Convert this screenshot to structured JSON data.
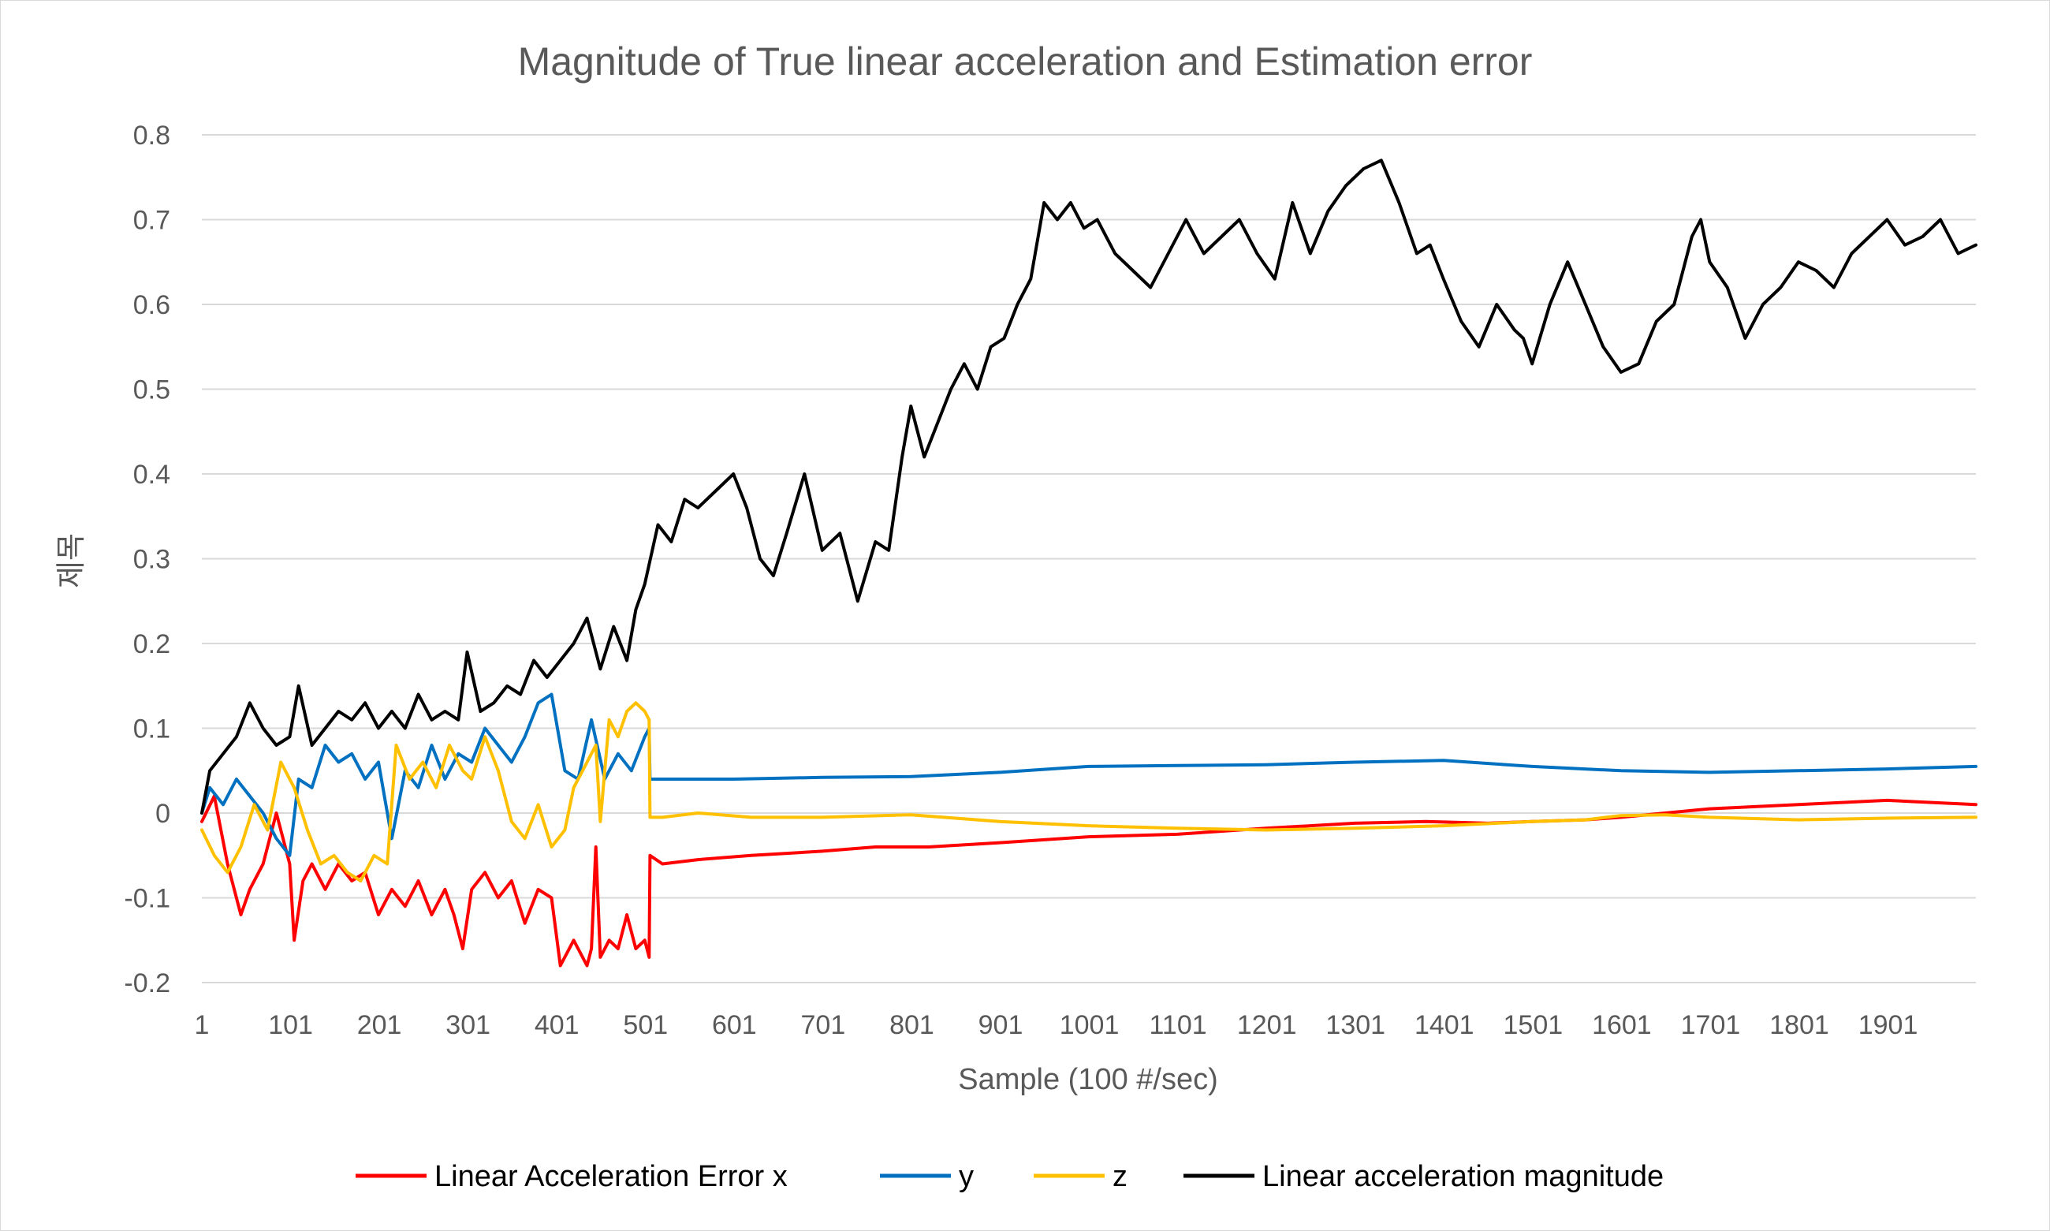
{
  "chart_data": {
    "type": "line",
    "title": "Magnitude of True linear acceleration and Estimation error",
    "xlabel": "Sample (100 #/sec)",
    "ylabel": "제목",
    "xlim": [
      1,
      2000
    ],
    "ylim": [
      -0.2,
      0.8
    ],
    "y_ticks": [
      -0.2,
      -0.1,
      0,
      0.1,
      0.2,
      0.3,
      0.4,
      0.5,
      0.6,
      0.7,
      0.8
    ],
    "x_ticks": [
      1,
      101,
      201,
      301,
      401,
      501,
      601,
      701,
      801,
      901,
      1001,
      1101,
      1201,
      1301,
      1401,
      1501,
      1601,
      1701,
      1801,
      1901
    ],
    "y_tick_labels": [
      "-0.2",
      "-0.1",
      "0",
      "0.1",
      "0.2",
      "0.3",
      "0.4",
      "0.5",
      "0.6",
      "0.7",
      "0.8"
    ],
    "x_tick_labels": [
      "1",
      "101",
      "201",
      "301",
      "401",
      "501",
      "601",
      "701",
      "801",
      "901",
      "1001",
      "1101",
      "1201",
      "1301",
      "1401",
      "1501",
      "1601",
      "1701",
      "1801",
      "1901"
    ],
    "grid": "horizontal",
    "legend_position": "bottom",
    "series": [
      {
        "name": "Linear Acceleration Error x",
        "color": "#ff0000",
        "x": [
          1,
          15,
          30,
          45,
          55,
          70,
          85,
          100,
          105,
          115,
          125,
          140,
          155,
          170,
          185,
          200,
          215,
          230,
          245,
          260,
          275,
          285,
          295,
          305,
          320,
          335,
          350,
          365,
          380,
          395,
          405,
          420,
          435,
          440,
          445,
          450,
          460,
          470,
          480,
          490,
          500,
          505,
          506,
          520,
          560,
          620,
          700,
          760,
          820,
          900,
          1000,
          1100,
          1200,
          1300,
          1380,
          1450,
          1500,
          1560,
          1600,
          1650,
          1700,
          1800,
          1900,
          2000
        ],
        "y": [
          -0.01,
          0.02,
          -0.06,
          -0.12,
          -0.09,
          -0.06,
          0.0,
          -0.06,
          -0.15,
          -0.08,
          -0.06,
          -0.09,
          -0.06,
          -0.08,
          -0.07,
          -0.12,
          -0.09,
          -0.11,
          -0.08,
          -0.12,
          -0.09,
          -0.12,
          -0.16,
          -0.09,
          -0.07,
          -0.1,
          -0.08,
          -0.13,
          -0.09,
          -0.1,
          -0.18,
          -0.15,
          -0.18,
          -0.16,
          -0.04,
          -0.17,
          -0.15,
          -0.16,
          -0.12,
          -0.16,
          -0.15,
          -0.17,
          -0.05,
          -0.06,
          -0.055,
          -0.05,
          -0.045,
          -0.04,
          -0.04,
          -0.035,
          -0.028,
          -0.025,
          -0.018,
          -0.012,
          -0.01,
          -0.012,
          -0.01,
          -0.008,
          -0.005,
          0.0,
          0.005,
          0.01,
          0.015,
          0.01
        ]
      },
      {
        "name": "y",
        "color": "#0070c0",
        "x": [
          1,
          10,
          25,
          40,
          55,
          70,
          85,
          100,
          110,
          125,
          140,
          155,
          170,
          185,
          200,
          215,
          230,
          245,
          260,
          275,
          290,
          305,
          320,
          335,
          350,
          365,
          380,
          395,
          410,
          425,
          440,
          455,
          470,
          485,
          500,
          505,
          506,
          520,
          600,
          700,
          800,
          900,
          1000,
          1100,
          1200,
          1300,
          1400,
          1500,
          1600,
          1700,
          1800,
          1900,
          2000
        ],
        "y": [
          0.0,
          0.03,
          0.01,
          0.04,
          0.02,
          0.0,
          -0.03,
          -0.05,
          0.04,
          0.03,
          0.08,
          0.06,
          0.07,
          0.04,
          0.06,
          -0.03,
          0.05,
          0.03,
          0.08,
          0.04,
          0.07,
          0.06,
          0.1,
          0.08,
          0.06,
          0.09,
          0.13,
          0.14,
          0.05,
          0.04,
          0.11,
          0.04,
          0.07,
          0.05,
          0.09,
          0.1,
          0.04,
          0.04,
          0.04,
          0.042,
          0.043,
          0.048,
          0.055,
          0.056,
          0.057,
          0.06,
          0.062,
          0.055,
          0.05,
          0.048,
          0.05,
          0.052,
          0.055
        ]
      },
      {
        "name": "z",
        "color": "#ffc000",
        "x": [
          1,
          15,
          30,
          45,
          60,
          75,
          90,
          105,
          120,
          135,
          150,
          165,
          180,
          195,
          210,
          220,
          235,
          250,
          265,
          280,
          295,
          305,
          320,
          335,
          350,
          365,
          380,
          395,
          410,
          420,
          430,
          445,
          450,
          460,
          470,
          480,
          490,
          500,
          505,
          506,
          520,
          560,
          620,
          700,
          800,
          900,
          1000,
          1100,
          1200,
          1300,
          1400,
          1500,
          1560,
          1600,
          1650,
          1700,
          1800,
          1900,
          2000
        ],
        "y": [
          -0.02,
          -0.05,
          -0.07,
          -0.04,
          0.01,
          -0.02,
          0.06,
          0.03,
          -0.02,
          -0.06,
          -0.05,
          -0.07,
          -0.08,
          -0.05,
          -0.06,
          0.08,
          0.04,
          0.06,
          0.03,
          0.08,
          0.05,
          0.04,
          0.09,
          0.05,
          -0.01,
          -0.03,
          0.01,
          -0.04,
          -0.02,
          0.03,
          0.05,
          0.08,
          -0.01,
          0.11,
          0.09,
          0.12,
          0.13,
          0.12,
          0.11,
          -0.005,
          -0.005,
          0.0,
          -0.005,
          -0.005,
          -0.002,
          -0.01,
          -0.015,
          -0.018,
          -0.02,
          -0.018,
          -0.015,
          -0.01,
          -0.008,
          -0.003,
          -0.002,
          -0.005,
          -0.008,
          -0.006,
          -0.005
        ]
      },
      {
        "name": "Linear acceleration magnitude",
        "color": "#000000",
        "x": [
          1,
          10,
          25,
          40,
          55,
          70,
          85,
          100,
          110,
          125,
          140,
          155,
          170,
          185,
          200,
          215,
          230,
          245,
          260,
          275,
          290,
          300,
          315,
          330,
          345,
          360,
          375,
          390,
          405,
          420,
          435,
          450,
          465,
          480,
          490,
          500,
          515,
          530,
          545,
          560,
          580,
          600,
          615,
          630,
          645,
          660,
          680,
          700,
          720,
          740,
          760,
          775,
          790,
          800,
          815,
          830,
          845,
          860,
          875,
          890,
          905,
          920,
          935,
          950,
          965,
          980,
          995,
          1010,
          1030,
          1050,
          1070,
          1090,
          1110,
          1130,
          1150,
          1170,
          1190,
          1210,
          1230,
          1250,
          1270,
          1290,
          1310,
          1330,
          1350,
          1370,
          1385,
          1400,
          1420,
          1440,
          1460,
          1480,
          1490,
          1500,
          1520,
          1540,
          1560,
          1580,
          1600,
          1620,
          1640,
          1660,
          1680,
          1690,
          1700,
          1720,
          1740,
          1760,
          1780,
          1800,
          1820,
          1840,
          1860,
          1880,
          1900,
          1920,
          1940,
          1960,
          1980,
          2000
        ],
        "y": [
          0.0,
          0.05,
          0.07,
          0.09,
          0.13,
          0.1,
          0.08,
          0.09,
          0.15,
          0.08,
          0.1,
          0.12,
          0.11,
          0.13,
          0.1,
          0.12,
          0.1,
          0.14,
          0.11,
          0.12,
          0.11,
          0.19,
          0.12,
          0.13,
          0.15,
          0.14,
          0.18,
          0.16,
          0.18,
          0.2,
          0.23,
          0.17,
          0.22,
          0.18,
          0.24,
          0.27,
          0.34,
          0.32,
          0.37,
          0.36,
          0.38,
          0.4,
          0.36,
          0.3,
          0.28,
          0.33,
          0.4,
          0.31,
          0.33,
          0.25,
          0.32,
          0.31,
          0.42,
          0.48,
          0.42,
          0.46,
          0.5,
          0.53,
          0.5,
          0.55,
          0.56,
          0.6,
          0.63,
          0.72,
          0.7,
          0.72,
          0.69,
          0.7,
          0.66,
          0.64,
          0.62,
          0.66,
          0.7,
          0.66,
          0.68,
          0.7,
          0.66,
          0.63,
          0.72,
          0.66,
          0.71,
          0.74,
          0.76,
          0.77,
          0.72,
          0.66,
          0.67,
          0.63,
          0.58,
          0.55,
          0.6,
          0.57,
          0.56,
          0.53,
          0.6,
          0.65,
          0.6,
          0.55,
          0.52,
          0.53,
          0.58,
          0.6,
          0.68,
          0.7,
          0.65,
          0.62,
          0.56,
          0.6,
          0.62,
          0.65,
          0.64,
          0.62,
          0.66,
          0.68,
          0.7,
          0.67,
          0.68,
          0.7,
          0.66,
          0.67
        ]
      }
    ]
  }
}
